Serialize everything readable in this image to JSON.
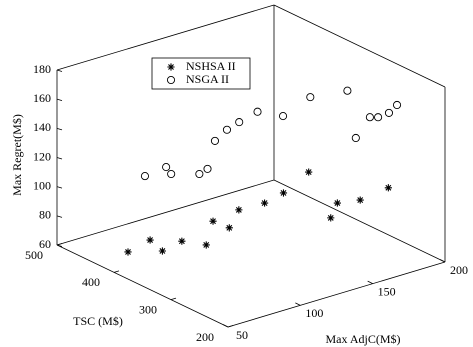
{
  "chart_data": {
    "type": "scatter3d",
    "xlabel": "Max AdjC(M$)",
    "ylabel": "TSC (M$)",
    "zlabel": "Max Regret(M$)",
    "xlim": [
      50,
      200
    ],
    "ylim": [
      200,
      500
    ],
    "zlim": [
      60,
      180
    ],
    "xticks": [
      50,
      100,
      150,
      200
    ],
    "yticks": [
      200,
      300,
      400,
      500
    ],
    "zticks": [
      60,
      80,
      100,
      120,
      140,
      160,
      180
    ],
    "grid": false,
    "legend": "upper left",
    "series": [
      {
        "name": "NSHSA II",
        "marker": "asterisk",
        "color": "#000000",
        "x": [
          58.5,
          78.5,
          74,
          91,
          98,
          122,
          123,
          143,
          160,
          177,
          183,
          175,
          191,
          193,
          190
        ],
        "y": [
          397,
          409,
          376,
          385,
          360,
          409,
          383,
          417,
          415,
          425,
          396,
          337,
          366,
          331,
          274
        ],
        "z": [
          72,
          72,
          72,
          72,
          72,
          72,
          72,
          72,
          72,
          72,
          90,
          72,
          72,
          80,
          100
        ]
      },
      {
        "name": "NSGA II",
        "marker": "circle",
        "color": "#000000",
        "x": [
          58,
          75,
          71,
          83,
          91,
          119,
          134,
          146,
          163,
          170,
          179,
          194,
          188,
          193,
          190,
          192,
          196
        ],
        "y": [
          366,
          372,
          353,
          334,
          340,
          398,
          415,
          424,
          435,
          408,
          383,
          356,
          326,
          314,
          292,
          278,
          274
        ],
        "z": [
          130,
          130,
          130,
          130,
          130,
          130,
          130,
          130,
          130,
          130,
          145,
          150,
          125,
          140,
          145,
          150,
          155
        ]
      }
    ]
  }
}
